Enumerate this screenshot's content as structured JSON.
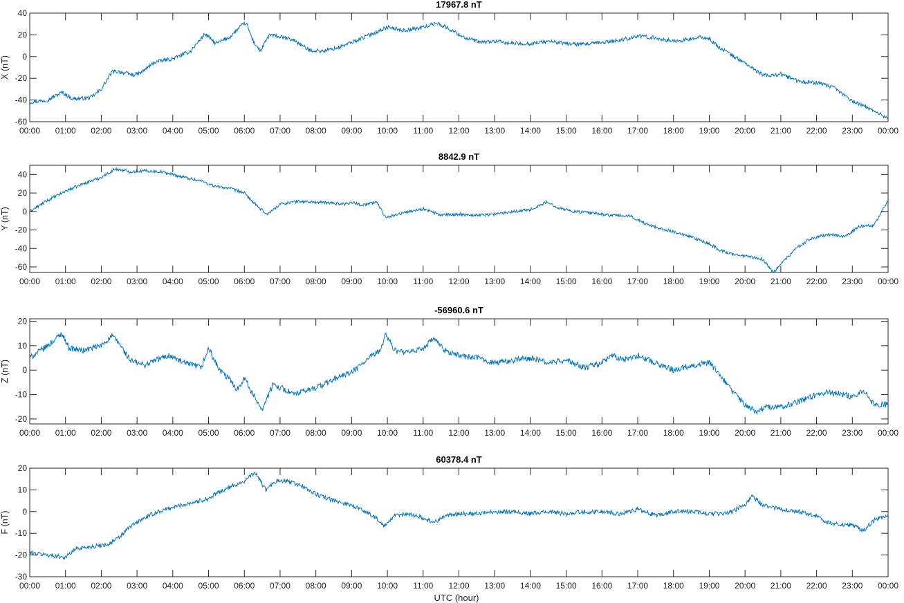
{
  "figure": {
    "xlabel": "UTC (hour)",
    "line_color": "#0072BD"
  },
  "chart_data": [
    {
      "type": "line",
      "title": "17967.8 nT",
      "ylabel": "X (nT)",
      "xlim": [
        0,
        24
      ],
      "ylim": [
        -60,
        40
      ],
      "yticks": [
        -60,
        -40,
        -20,
        0,
        20,
        40
      ],
      "xtick_labels": [
        "00:00",
        "01:00",
        "02:00",
        "03:00",
        "04:00",
        "05:00",
        "06:00",
        "07:00",
        "08:00",
        "09:00",
        "10:00",
        "11:00",
        "12:00",
        "13:00",
        "14:00",
        "15:00",
        "16:00",
        "17:00",
        "18:00",
        "19:00",
        "20:00",
        "21:00",
        "22:00",
        "23:00",
        "00:00"
      ],
      "noise": 1.8,
      "series": [
        {
          "x": [
            0,
            0.5,
            0.9,
            1.2,
            1.7,
            2.0,
            2.3,
            2.5,
            2.9,
            3.1,
            3.5,
            4.0,
            4.5,
            4.9,
            5.2,
            5.6,
            5.9,
            6.05,
            6.25,
            6.45,
            6.7,
            7.0,
            7.4,
            7.8,
            8.2,
            8.6,
            9.0,
            9.5,
            10.0,
            10.5,
            11.0,
            11.4,
            11.8,
            12.2,
            12.6,
            13.0,
            13.5,
            14.0,
            14.5,
            15.0,
            15.5,
            16.0,
            16.5,
            17.0,
            17.5,
            18.0,
            18.5,
            18.8,
            19.0,
            19.3,
            19.7,
            20.0,
            20.3,
            20.6,
            21.0,
            21.5,
            22.0,
            22.5,
            23.0,
            23.5,
            24.0
          ],
          "y": [
            -42,
            -40,
            -33,
            -39,
            -38,
            -30,
            -14,
            -14,
            -17,
            -15,
            -5,
            -2,
            5,
            21,
            12,
            18,
            28,
            31,
            14,
            5,
            20,
            18,
            15,
            6,
            5,
            8,
            13,
            20,
            27,
            24,
            27,
            31,
            24,
            17,
            13,
            14,
            12,
            12,
            14,
            12,
            11,
            13,
            15,
            19,
            17,
            14,
            16,
            18,
            16,
            8,
            0,
            -6,
            -13,
            -18,
            -16,
            -23,
            -24,
            -29,
            -41,
            -48,
            -57
          ]
        }
      ]
    },
    {
      "type": "line",
      "title": "8842.9 nT",
      "ylabel": "Y (nT)",
      "xlim": [
        0,
        24
      ],
      "ylim": [
        -66,
        50
      ],
      "yticks": [
        -60,
        -40,
        -20,
        0,
        20,
        40
      ],
      "xtick_labels": [
        "00:00",
        "01:00",
        "02:00",
        "03:00",
        "04:00",
        "05:00",
        "06:00",
        "07:00",
        "08:00",
        "09:00",
        "10:00",
        "11:00",
        "12:00",
        "13:00",
        "14:00",
        "15:00",
        "16:00",
        "17:00",
        "18:00",
        "19:00",
        "20:00",
        "21:00",
        "22:00",
        "23:00",
        "00:00"
      ],
      "noise": 1.6,
      "series": [
        {
          "x": [
            0,
            0.5,
            1.0,
            1.5,
            2.0,
            2.4,
            2.8,
            3.2,
            3.7,
            4.2,
            4.8,
            5.2,
            5.6,
            6.0,
            6.4,
            6.65,
            7.0,
            7.5,
            8.0,
            8.5,
            8.8,
            9.0,
            9.3,
            9.7,
            9.9,
            10.0,
            10.5,
            11.0,
            11.5,
            12.0,
            12.5,
            13.0,
            13.5,
            14.0,
            14.45,
            14.8,
            15.2,
            15.8,
            16.2,
            16.8,
            17.2,
            17.6,
            18.0,
            18.5,
            19.0,
            19.3,
            19.7,
            20.0,
            20.5,
            20.8,
            21.0,
            21.4,
            21.8,
            22.3,
            22.8,
            23.2,
            23.6,
            24.0
          ],
          "y": [
            0,
            12,
            22,
            30,
            37,
            46,
            43,
            44,
            43,
            38,
            33,
            27,
            25,
            20,
            4,
            -3,
            8,
            11,
            10,
            9,
            8,
            10,
            7,
            10,
            -3,
            -6,
            -1,
            3,
            -4,
            -3,
            -4,
            -3,
            0,
            2,
            10,
            4,
            0,
            -2,
            -4,
            -5,
            -13,
            -18,
            -22,
            -28,
            -35,
            -42,
            -47,
            -48,
            -52,
            -66,
            -57,
            -41,
            -30,
            -25,
            -27,
            -16,
            -15,
            12
          ]
        }
      ]
    },
    {
      "type": "line",
      "title": "-56960.6 nT",
      "ylabel": "Z (nT)",
      "xlim": [
        0,
        24
      ],
      "ylim": [
        -22,
        21
      ],
      "yticks": [
        -20,
        -10,
        0,
        10,
        20
      ],
      "xtick_labels": [
        "00:00",
        "01:00",
        "02:00",
        "03:00",
        "04:00",
        "05:00",
        "06:00",
        "07:00",
        "08:00",
        "09:00",
        "10:00",
        "11:00",
        "12:00",
        "13:00",
        "14:00",
        "15:00",
        "16:00",
        "17:00",
        "18:00",
        "19:00",
        "20:00",
        "21:00",
        "22:00",
        "23:00",
        "00:00"
      ],
      "noise": 1.2,
      "series": [
        {
          "x": [
            0,
            0.5,
            0.9,
            1.1,
            1.5,
            2.0,
            2.3,
            2.5,
            2.8,
            3.2,
            3.5,
            3.9,
            4.3,
            4.8,
            5.0,
            5.3,
            5.6,
            5.8,
            6.0,
            6.2,
            6.5,
            6.8,
            7.0,
            7.4,
            7.8,
            8.2,
            8.6,
            9.0,
            9.5,
            9.8,
            9.95,
            10.2,
            10.6,
            11.0,
            11.3,
            11.6,
            12.0,
            12.5,
            13.0,
            13.5,
            14.0,
            14.5,
            15.0,
            15.5,
            16.0,
            16.3,
            16.6,
            17.0,
            17.5,
            18.0,
            18.5,
            19.0,
            19.3,
            19.6,
            20.0,
            20.3,
            20.6,
            21.0,
            21.5,
            22.0,
            22.3,
            22.8,
            23.0,
            23.3,
            23.6,
            24.0
          ],
          "y": [
            5,
            10,
            15,
            9,
            8,
            10,
            14,
            11,
            4,
            2,
            4,
            6,
            3,
            1,
            9,
            0,
            -4,
            -8,
            -3,
            -9,
            -16,
            -6,
            -7,
            -10,
            -8,
            -6,
            -3,
            -1,
            5,
            8,
            15,
            8,
            7,
            9,
            13,
            8,
            6,
            5,
            3,
            4,
            5,
            3,
            4,
            1,
            3,
            6,
            4,
            6,
            3,
            0,
            2,
            3,
            -2,
            -8,
            -14,
            -17,
            -15,
            -15,
            -13,
            -10,
            -9,
            -10,
            -11,
            -8,
            -14,
            -14
          ]
        }
      ]
    },
    {
      "type": "line",
      "title": "60378.4 nT",
      "ylabel": "F (nT)",
      "xlim": [
        0,
        24
      ],
      "ylim": [
        -30,
        20
      ],
      "yticks": [
        -30,
        -20,
        -10,
        0,
        10,
        20
      ],
      "xtick_labels": [
        "00:00",
        "01:00",
        "02:00",
        "03:00",
        "04:00",
        "05:00",
        "06:00",
        "07:00",
        "08:00",
        "09:00",
        "10:00",
        "11:00",
        "12:00",
        "13:00",
        "14:00",
        "15:00",
        "16:00",
        "17:00",
        "18:00",
        "19:00",
        "20:00",
        "21:00",
        "22:00",
        "23:00",
        "00:00"
      ],
      "noise": 1.0,
      "series": [
        {
          "x": [
            0,
            0.5,
            1.0,
            1.3,
            1.8,
            2.2,
            2.5,
            2.8,
            3.2,
            3.6,
            4.0,
            4.5,
            5.0,
            5.3,
            5.7,
            6.0,
            6.3,
            6.6,
            6.9,
            7.2,
            7.6,
            8.0,
            8.5,
            9.0,
            9.5,
            9.7,
            9.9,
            10.2,
            10.6,
            11.0,
            11.3,
            11.6,
            12.0,
            12.5,
            13.0,
            13.5,
            14.0,
            14.5,
            15.0,
            15.5,
            16.0,
            16.5,
            17.0,
            17.5,
            18.0,
            18.5,
            19.0,
            19.5,
            20.0,
            20.2,
            20.5,
            21.0,
            21.5,
            22.0,
            22.3,
            22.7,
            23.0,
            23.3,
            23.6,
            24.0
          ],
          "y": [
            -19,
            -20,
            -21,
            -17,
            -16,
            -15,
            -12,
            -7,
            -3,
            0,
            2,
            4,
            6,
            9,
            12,
            14,
            18,
            10,
            14,
            14,
            12,
            8,
            5,
            3,
            -1,
            -3,
            -7,
            -2,
            -1,
            -3,
            -5,
            -2,
            -1,
            -1,
            0,
            0,
            -1,
            0,
            -1,
            0,
            0,
            -1,
            1,
            -2,
            0,
            0,
            -1,
            -1,
            3,
            7,
            3,
            1,
            0,
            -2,
            -5,
            -6,
            -6,
            -9,
            -4,
            -2
          ]
        }
      ]
    }
  ]
}
